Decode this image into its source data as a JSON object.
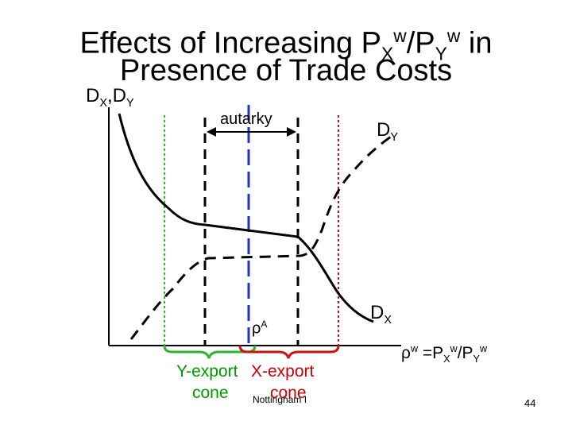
{
  "title": {
    "line1": {
      "pre": "Effects of Increasing P",
      "sub1": "X",
      "sup1": "w",
      "mid": "/P",
      "sub2": "Y",
      "sup2": "w",
      "post": " in"
    },
    "line2": "Presence of Trade Costs"
  },
  "axis": {
    "y_label": {
      "d1": "D",
      "s1": "X",
      "sep": ",",
      "d2": "D",
      "s2": "Y"
    },
    "x_label": {
      "pre": "ρ",
      "sup1": "w",
      "mid": " =P",
      "sub1": "X",
      "sup2": "w",
      "mid2": "/P",
      "sub2": "Y",
      "sup3": "w"
    }
  },
  "labels": {
    "autarky": "autarky",
    "dy": {
      "d": "D",
      "s": "Y"
    },
    "dx": {
      "d": "D",
      "s": "X"
    },
    "rho_a": {
      "rho": "ρ",
      "sup": "A"
    },
    "y_export_cone_1": "Y-export",
    "y_export_cone_2": "cone",
    "x_export_cone_1": "X-export",
    "x_export_cone_2": "cone"
  },
  "footer": {
    "source": "Nottingham I",
    "page": "44"
  },
  "colors": {
    "green": "#2db52d",
    "red": "#cc1111",
    "blue": "#2233cc",
    "text_red": "#cc0000",
    "text_green": "#009900"
  }
}
